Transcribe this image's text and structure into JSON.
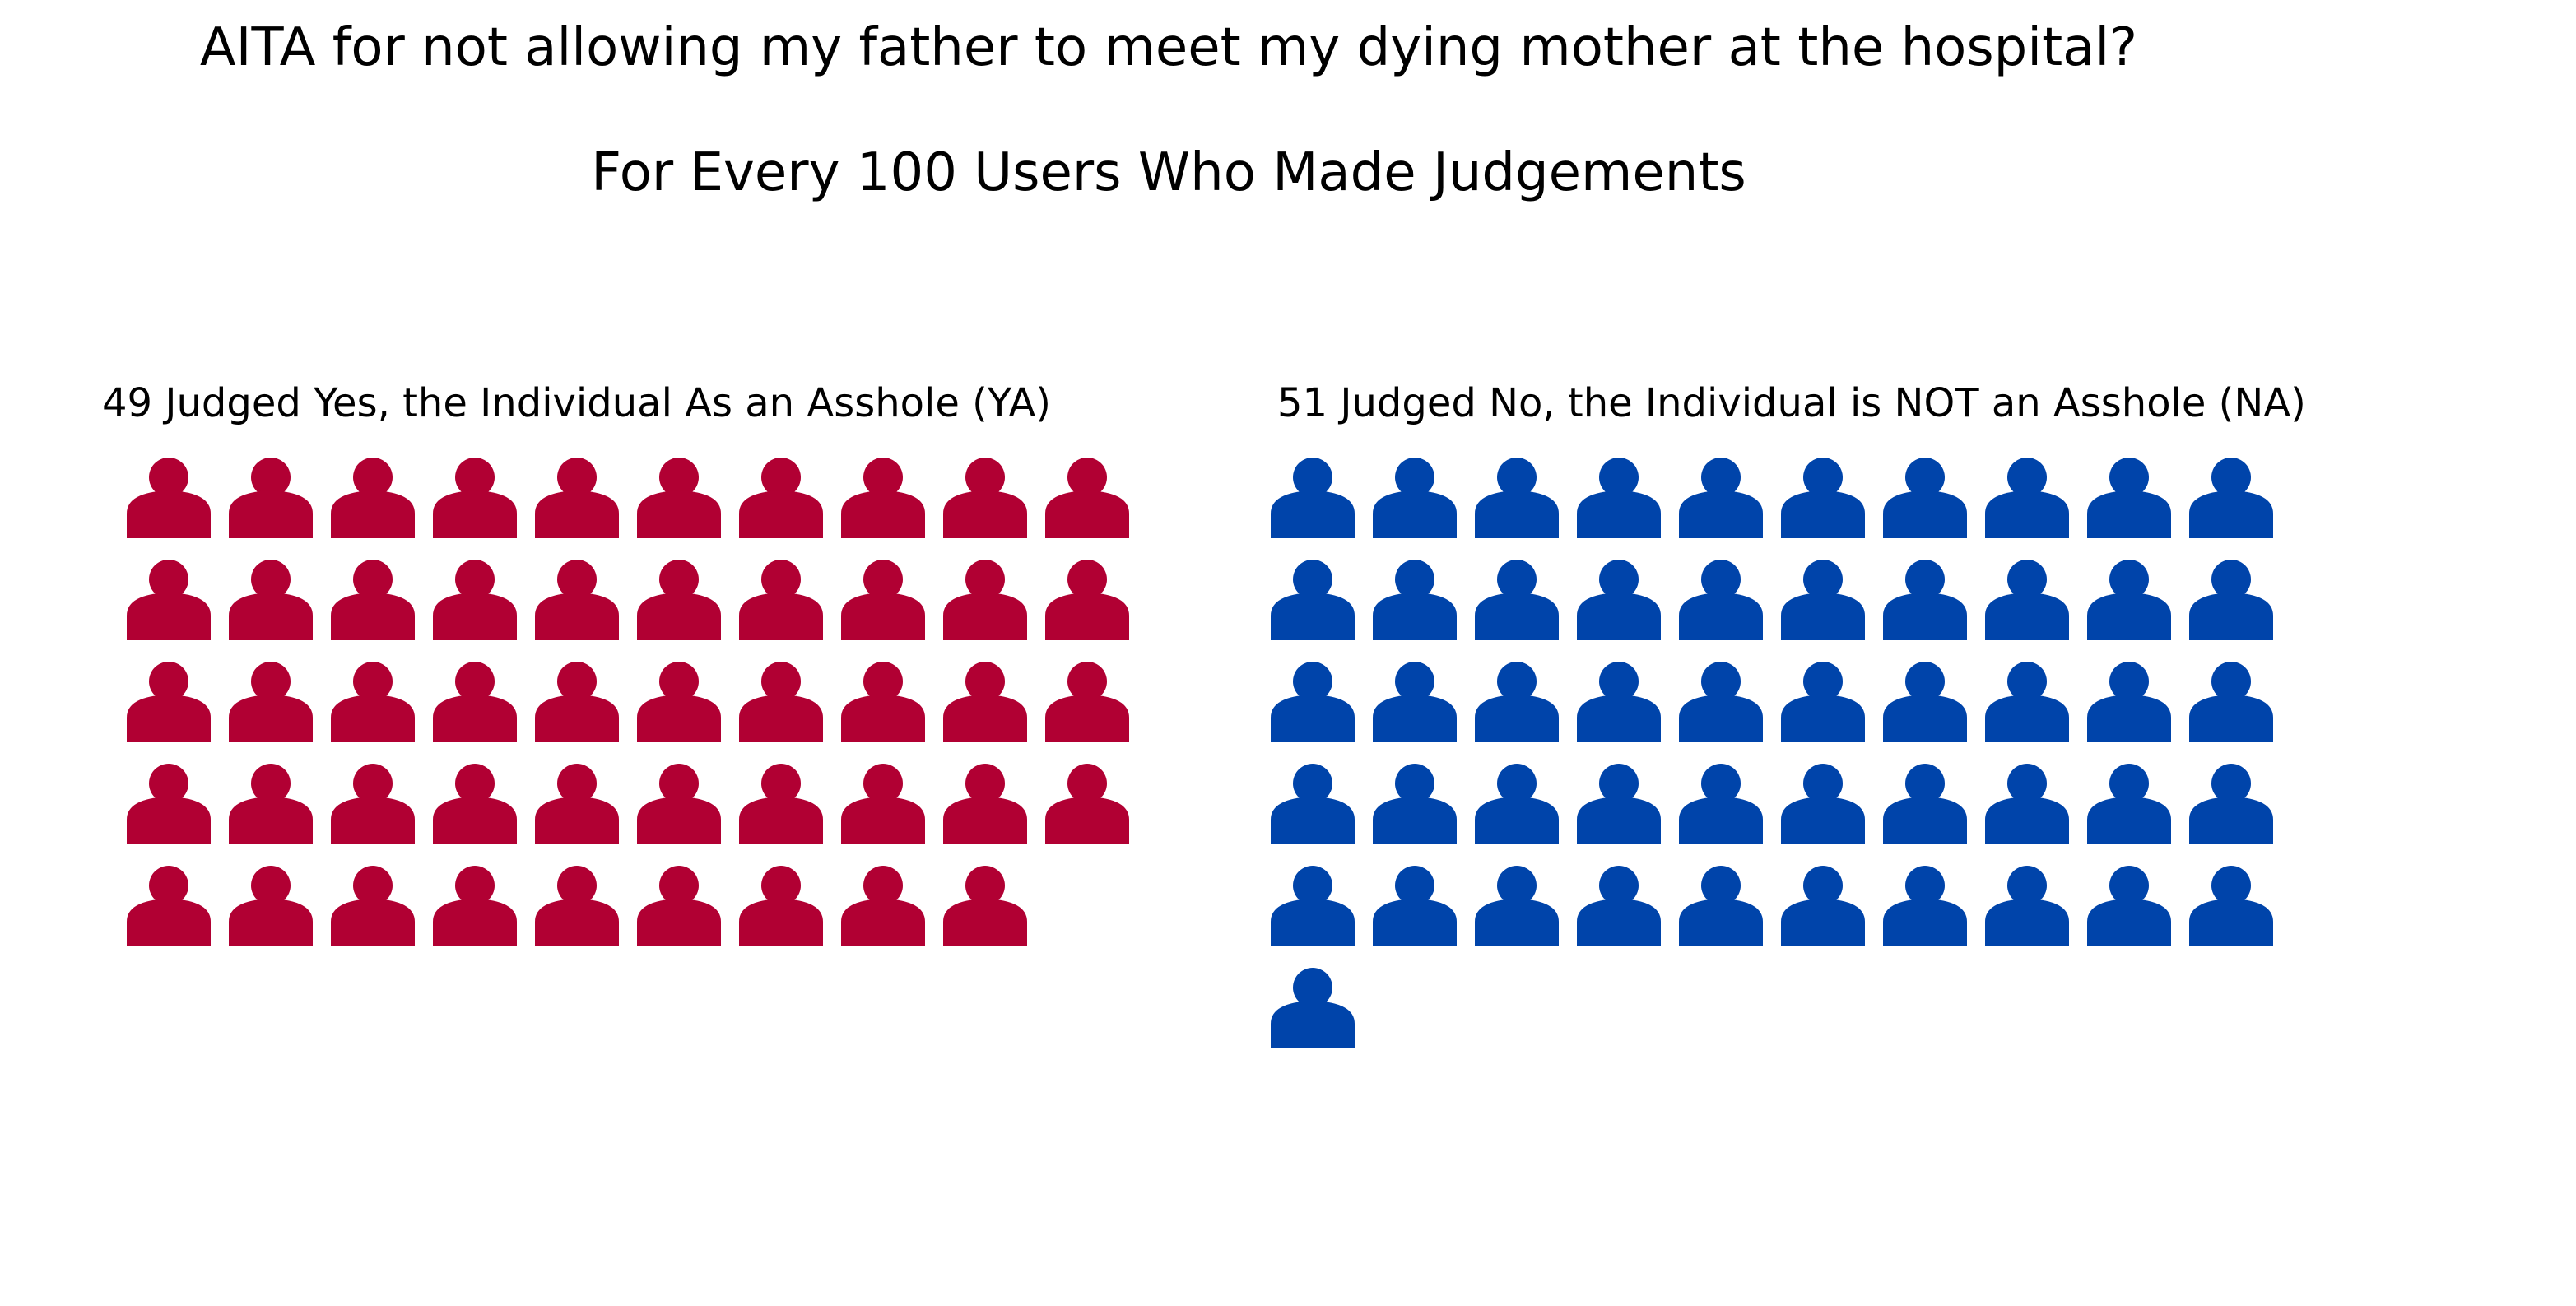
{
  "chart_data": {
    "type": "pictogram",
    "title": "AITA for not allowing my father to meet my dying mother at the hospital?",
    "subtitle": "For Every 100 Users Who Made Judgements",
    "icon": "person-icon",
    "icons_per_row": 10,
    "groups": [
      {
        "label": "49 Judged Yes, the Individual As an Asshole (YA)",
        "value": 49,
        "color": "#b10033"
      },
      {
        "label": "51 Judged No, the Individual is NOT an Asshole (NA)",
        "value": 51,
        "color": "#0044aa"
      }
    ]
  }
}
